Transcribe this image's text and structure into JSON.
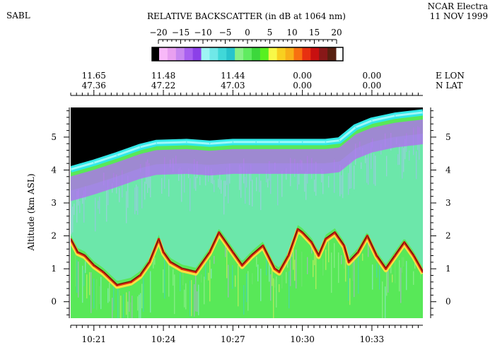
{
  "header": {
    "instrument": "SABL",
    "platform": "NCAR Electra",
    "date": "11 NOV 1999"
  },
  "chart_data": {
    "type": "heatmap",
    "title": "RELATIVE BACKSCATTER (in dB at 1064 nm)",
    "ylabel": "Altitude (km ASL)",
    "xlabel": "",
    "ylim": [
      -0.5,
      5.9
    ],
    "y_ticks": [
      0,
      1,
      2,
      3,
      4,
      5
    ],
    "y_tick_labels": [
      "0",
      "1",
      "2",
      "3",
      "4",
      "5"
    ],
    "time_range_min": [
      620.0,
      635.2
    ],
    "time_ticks_min": [
      621,
      624,
      627,
      630,
      633
    ],
    "time_tick_labels": [
      "10:21",
      "10:24",
      "10:27",
      "10:30",
      "10:33"
    ],
    "colorbar": {
      "min": -20,
      "max": 20,
      "tick_values": [
        -20,
        -15,
        -10,
        -5,
        0,
        5,
        10,
        15,
        20
      ],
      "tick_labels": [
        "−20",
        "−15",
        "−10",
        "−5",
        "0",
        "5",
        "10",
        "15",
        "20"
      ],
      "colors": [
        "#f8b8f8",
        "#e8a0f0",
        "#c888f0",
        "#a860f0",
        "#8c40e8",
        "#9ef4f4",
        "#70e8e8",
        "#40d8d8",
        "#28c4cc",
        "#88f088",
        "#60ec60",
        "#3cd83c",
        "#58f020",
        "#f8f848",
        "#f8d020",
        "#f8b018",
        "#f87010",
        "#e83010",
        "#c81010",
        "#881818",
        "#582010"
      ],
      "low_end_color": "#000000",
      "high_end_color": "#ffffff"
    },
    "position_axis": {
      "time_min": [
        621,
        624,
        627,
        630,
        633
      ],
      "lon_labels": [
        "11.65",
        "11.48",
        "11.44",
        "0.00",
        "0.00"
      ],
      "lat_labels": [
        "47.36",
        "47.22",
        "47.03",
        "0.00",
        "0.00"
      ],
      "lon_axis_label": "E  LON",
      "lat_axis_label": "N  LAT"
    },
    "series": [
      {
        "name": "Aircraft altitude (data-free region above)",
        "time_min": [
          620.0,
          621.0,
          622.0,
          623.0,
          623.7,
          625.0,
          626.0,
          627.0,
          628.0,
          629.0,
          630.0,
          631.0,
          631.6,
          632.3,
          633.0,
          634.0,
          635.2
        ],
        "altitude_km": [
          4.02,
          4.22,
          4.45,
          4.7,
          4.82,
          4.85,
          4.8,
          4.85,
          4.85,
          4.85,
          4.85,
          4.85,
          4.9,
          5.3,
          5.5,
          5.65,
          5.75
        ]
      },
      {
        "name": "Boundary layer top (strong backscatter)",
        "time_min": [
          620.0,
          620.3,
          620.6,
          621.0,
          621.4,
          622.0,
          622.6,
          623.0,
          623.4,
          623.8,
          624.0,
          624.3,
          624.8,
          625.4,
          626.0,
          626.4,
          627.0,
          627.4,
          627.8,
          628.3,
          628.8,
          629.0,
          629.4,
          629.8,
          630.0,
          630.4,
          630.7,
          631.0,
          631.4,
          631.8,
          632.0,
          632.4,
          632.8,
          633.2,
          633.6,
          634.0,
          634.4,
          634.8,
          635.2
        ],
        "altitude_km": [
          1.9,
          1.5,
          1.4,
          1.1,
          0.9,
          0.5,
          0.6,
          0.8,
          1.2,
          1.9,
          1.5,
          1.2,
          1.0,
          0.9,
          1.5,
          2.1,
          1.5,
          1.1,
          1.4,
          1.7,
          1.0,
          0.9,
          1.4,
          2.2,
          2.1,
          1.8,
          1.4,
          1.9,
          2.1,
          1.7,
          1.2,
          1.5,
          2.0,
          1.4,
          1.0,
          1.4,
          1.8,
          1.4,
          0.9
        ]
      }
    ]
  }
}
